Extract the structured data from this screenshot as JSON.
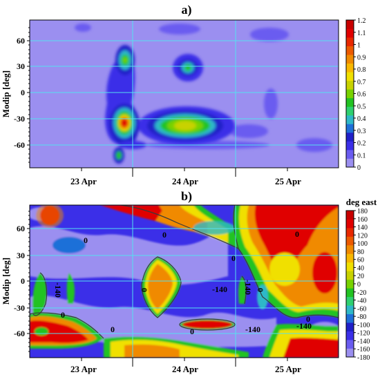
{
  "chart_data": [
    {
      "type": "heatmap",
      "panel_label": "a)",
      "xlabel": "",
      "ylabel": "Modip [deg]",
      "x_ticks": [
        "23 Apr",
        "24 Apr",
        "25 Apr"
      ],
      "y_ticks": [
        60,
        30,
        0,
        -30,
        -60
      ],
      "ylim": [
        -85,
        85
      ],
      "grid": true,
      "colorbar": {
        "title": "",
        "ticks": [
          "1.2",
          "1.1",
          "1",
          "0.9",
          "0.8",
          "0.7",
          "0.6",
          "0.5",
          "0.4",
          "0.3",
          "0.2",
          "0.1",
          "0"
        ],
        "colors": [
          "#9b8ff0",
          "#6a5cf0",
          "#3b2fe8",
          "#2020c8",
          "#1e6fd8",
          "#2fb8c8",
          "#2fd070",
          "#22c322",
          "#78d200",
          "#c8d200",
          "#f0e000",
          "#f8b800",
          "#f08a00",
          "#ec5a00",
          "#e82800",
          "#e00000",
          "#c80000"
        ]
      },
      "features": [
        {
          "name": "peak",
          "x_day": 23.53,
          "modip": -33,
          "value": 1.2
        },
        {
          "name": "peak",
          "x_day": 23.56,
          "modip": 36,
          "value": 0.6
        },
        {
          "name": "peak",
          "x_day": 24.08,
          "modip": 25,
          "value": 0.6
        },
        {
          "name": "peak",
          "x_day": 24.25,
          "modip": -38,
          "value": 0.7
        },
        {
          "name": "peak",
          "x_day": 23.52,
          "modip": -72,
          "value": 0.4
        }
      ]
    },
    {
      "type": "heatmap",
      "panel_label": "b)",
      "xlabel": "",
      "ylabel": "Modip [deg]",
      "x_ticks": [
        "23 Apr",
        "24 Apr",
        "25 Apr"
      ],
      "y_ticks": [
        60,
        30,
        0,
        -30,
        -60
      ],
      "ylim": [
        -85,
        85
      ],
      "grid": true,
      "colorbar": {
        "title": "deg east",
        "ticks": [
          "180",
          "160",
          "140",
          "120",
          "100",
          "80",
          "60",
          "40",
          "20",
          "0",
          "-20",
          "-40",
          "-60",
          "-80",
          "-100",
          "-120",
          "-140",
          "-160",
          "-180"
        ],
        "colors": [
          "#9b8ff0",
          "#6a5cf0",
          "#3b2fe8",
          "#2020c8",
          "#1e6fd8",
          "#2fb8c8",
          "#2fd070",
          "#22c322",
          "#78d200",
          "#c8d200",
          "#f0e000",
          "#f8b800",
          "#f08a00",
          "#ec5a00",
          "#e82800",
          "#e00000",
          "#c80000"
        ]
      },
      "contour_labels": [
        "0",
        "0",
        "0",
        "0",
        "0",
        "0",
        "0",
        "0",
        "-140",
        "-140",
        "-140",
        "-140",
        "-140",
        "0"
      ]
    }
  ]
}
